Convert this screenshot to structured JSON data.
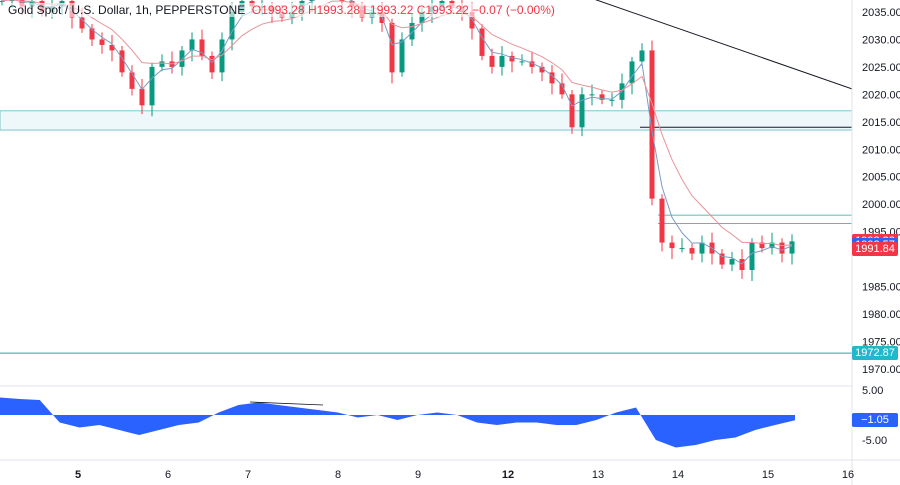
{
  "header": {
    "symbol": "Gold Spot / U.S. Dollar, 1h, PEPPERSTONE",
    "open": "O1993.28",
    "high": "H1993.28",
    "low": "L1993.22",
    "close": "C1993.22",
    "change": "−0.07 (−0.00%)"
  },
  "colors": {
    "up": "#089981",
    "down": "#f23645",
    "ma_fast": "#7a9cc6",
    "ma_slow": "#e8939a",
    "osc": "#2962ff",
    "zone": "#5bb8c4",
    "level": "#26a69a"
  },
  "price_tags": [
    {
      "text": "1993.22",
      "color": "#f23645",
      "price": 1993.22
    },
    {
      "text": "1992.57",
      "color": "#2962ff",
      "price": 1992.57
    },
    {
      "text": "1991.84",
      "color": "#f23645",
      "price": 1991.84
    },
    {
      "text": "1972.87",
      "color": "#22b7c9",
      "price": 1972.87
    }
  ],
  "osc_tag": {
    "text": "−1.05",
    "value": -1.05
  },
  "chart_data": {
    "type": "candlestick",
    "y_ticks": [
      2035,
      2030,
      2025,
      2020,
      2015,
      2010,
      2005,
      2000,
      1995,
      1985,
      1980,
      1975,
      1970
    ],
    "x_ticks": [
      {
        "label": "5",
        "i": 8
      },
      {
        "label": "6",
        "i": 17
      },
      {
        "label": "7",
        "i": 25
      },
      {
        "label": "8",
        "i": 34
      },
      {
        "label": "9",
        "i": 42
      },
      {
        "label": "12",
        "i": 51
      },
      {
        "label": "13",
        "i": 60
      },
      {
        "label": "14",
        "i": 68
      },
      {
        "label": "15",
        "i": 77
      },
      {
        "label": "16",
        "i": 85
      }
    ],
    "closes": [
      2037,
      2038,
      2036,
      2037,
      2035,
      2036,
      2037,
      2034,
      2032,
      2030,
      2029,
      2028,
      2024,
      2021,
      2018,
      2025,
      2026,
      2025,
      2028,
      2030,
      2027,
      2024,
      2030,
      2035,
      2037,
      2036,
      2036,
      2035,
      2034,
      2035,
      2037,
      2038,
      2039,
      2040,
      2037,
      2036,
      2034,
      2035,
      2033,
      2024,
      2030,
      2033,
      2035,
      2036,
      2037,
      2036,
      2035,
      2032,
      2027,
      2025,
      2027,
      2026,
      2026,
      2025,
      2024,
      2022,
      2020,
      2014,
      2020,
      2020,
      2019,
      2019,
      2022,
      2026,
      2028,
      2001,
      1993,
      1992,
      1992,
      1991,
      1993,
      1991,
      1989,
      1990,
      1988,
      1993,
      1992,
      1993,
      1991,
      1993.22
    ],
    "zone": [
      2013.5,
      2017
    ],
    "levels": [
      1972.87,
      2014,
      1998,
      1996.5
    ],
    "trendline": [
      [
        54,
        2037
      ],
      [
        85,
        2021
      ]
    ],
    "osc_ticks": [
      5,
      -5
    ],
    "osc": [
      3.5,
      3.2,
      3,
      -1.5,
      -2.5,
      -2,
      -3,
      -4,
      -3,
      -2,
      -1.5,
      0.5,
      2,
      2.5,
      2,
      1.5,
      1,
      0.5,
      -0.5,
      0,
      -1,
      0,
      0.5,
      0,
      -1.5,
      -2,
      -1.5,
      -1.5,
      -2,
      -2,
      -1,
      0.5,
      1.5,
      -5,
      -6.5,
      -6,
      -5,
      -4.5,
      -3,
      -2,
      -1.05
    ]
  }
}
